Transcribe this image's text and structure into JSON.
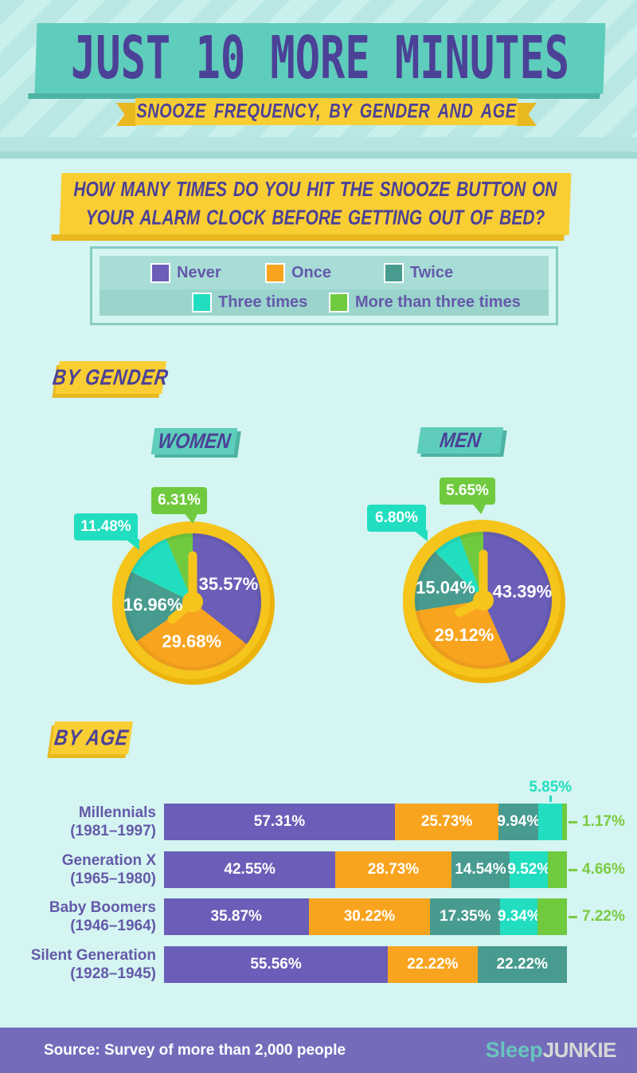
{
  "colors": {
    "never": "#6A5EB8",
    "once": "#F9A41F",
    "twice": "#479B8F",
    "three": "#22DEC0",
    "more": "#6FCA3E",
    "gold": "#F6C51C",
    "gold_dark": "#EDB30D",
    "banner": "#5FCDBB",
    "banner_shadow": "#4DB3A3",
    "yellow": "#F9CE33",
    "yellow_dark": "#E9B821",
    "purple_text": "#4B4197",
    "age_text": "#6459A9",
    "bg": "#D4F5F1",
    "stripe_a": "#B9E8E4",
    "stripe_b": "#C9F0EC",
    "band": "#B7E6E2",
    "band_dark": "#A2DBD5",
    "footer_bg": "#746CBB",
    "green_text": "#7CCB43",
    "logo_teal": "#68C5BE",
    "logo_gray": "#D8D8D6"
  },
  "header": {
    "title": "JUST 10 MORE MINUTES",
    "subtitle": "SNOOZE FREQUENCY, BY GENDER AND AGE"
  },
  "question": {
    "text": "HOW MANY TIMES DO YOU HIT THE SNOOZE BUTTON ON YOUR ALARM CLOCK BEFORE GETTING OUT OF BED?"
  },
  "legend": {
    "items": [
      {
        "key": "never",
        "label": "Never"
      },
      {
        "key": "once",
        "label": "Once"
      },
      {
        "key": "twice",
        "label": "Twice"
      },
      {
        "key": "three",
        "label": "Three times"
      },
      {
        "key": "more",
        "label": "More than three times"
      }
    ]
  },
  "sections": {
    "by_gender": "BY GENDER",
    "by_age": "BY AGE"
  },
  "chart_data": [
    {
      "type": "pie",
      "title": "WOMEN",
      "categories": [
        "Never",
        "Once",
        "Twice",
        "Three times",
        "More than three times"
      ],
      "values": [
        35.57,
        29.68,
        16.96,
        11.48,
        6.31
      ],
      "unit": "%",
      "inside_labels": [
        "35.57%",
        "29.68%",
        "16.96%",
        "",
        ""
      ],
      "callouts": [
        {
          "text": "11.48%",
          "key": "three"
        },
        {
          "text": "6.31%",
          "key": "more"
        }
      ],
      "hour_hand_deg": 230
    },
    {
      "type": "pie",
      "title": "MEN",
      "categories": [
        "Never",
        "Once",
        "Twice",
        "Three times",
        "More than three times"
      ],
      "values": [
        43.39,
        29.12,
        15.04,
        6.8,
        5.65
      ],
      "unit": "%",
      "inside_labels": [
        "43.39%",
        "29.12%",
        "15.04%",
        "",
        ""
      ],
      "callouts": [
        {
          "text": "6.80%",
          "key": "three"
        },
        {
          "text": "5.65%",
          "key": "more"
        }
      ],
      "hour_hand_deg": 243
    },
    {
      "type": "bar",
      "subtype": "stacked-horizontal-percent",
      "title": "BY AGE",
      "unit": "%",
      "xlim": [
        0,
        100
      ],
      "series_keys": [
        "never",
        "once",
        "twice",
        "three",
        "more"
      ],
      "series_names": [
        "Never",
        "Once",
        "Twice",
        "Three times",
        "More than three times"
      ],
      "rows": [
        {
          "name": "Millennials",
          "years": "(1981–1997)",
          "values": [
            57.31,
            25.73,
            9.94,
            5.85,
            1.17
          ],
          "inside_labels": [
            "57.31%",
            "25.73%",
            "9.94%",
            "",
            ""
          ],
          "above": {
            "text": "5.85%"
          },
          "right": {
            "text": "1.17%"
          }
        },
        {
          "name": "Generation X",
          "years": "(1965–1980)",
          "values": [
            42.55,
            28.73,
            14.54,
            9.52,
            4.66
          ],
          "inside_labels": [
            "42.55%",
            "28.73%",
            "14.54%",
            "9.52%",
            ""
          ],
          "right": {
            "text": "4.66%"
          }
        },
        {
          "name": "Baby Boomers",
          "years": "(1946–1964)",
          "values": [
            35.87,
            30.22,
            17.35,
            9.34,
            7.22
          ],
          "inside_labels": [
            "35.87%",
            "30.22%",
            "17.35%",
            "9.34%",
            ""
          ],
          "right": {
            "text": "7.22%"
          }
        },
        {
          "name": "Silent Generation",
          "years": "(1928–1945)",
          "values": [
            55.56,
            22.22,
            22.22,
            0,
            0
          ],
          "inside_labels": [
            "55.56%",
            "22.22%",
            "22.22%",
            "",
            ""
          ]
        }
      ]
    }
  ],
  "footer": {
    "source": "Source: Survey of more than 2,000 people",
    "logo_sleep": "Sleep",
    "logo_junkie": "JUNKIE"
  }
}
